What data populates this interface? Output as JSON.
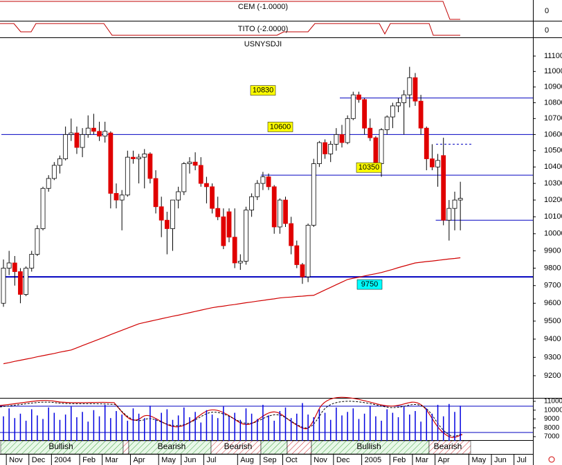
{
  "top_panels": [
    {
      "label": "CEM (-1.0000)",
      "yticks": [
        0
      ]
    },
    {
      "label": "TITO (-2.0000)",
      "yticks": [
        0
      ]
    }
  ],
  "chart_data": {
    "type": "candlestick",
    "title": "USNYSDJI",
    "log_scale": true,
    "up_color": "#ffffff",
    "down_color": "#e00000",
    "outline_color": "#000000",
    "categories": [
      null,
      "Nov",
      null,
      null,
      null,
      "Dec",
      null,
      null,
      null,
      "2004",
      null,
      null,
      null,
      null,
      "Feb",
      null,
      null,
      null,
      "Mar",
      null,
      null,
      null,
      null,
      "Apr",
      null,
      null,
      null,
      null,
      "May",
      null,
      null,
      null,
      "Jun",
      null,
      null,
      null,
      "Jul",
      null,
      null,
      null,
      null,
      null,
      "Aug",
      null,
      null,
      null,
      "Sep",
      null,
      null,
      null,
      "Oct",
      null,
      null,
      null,
      null,
      "Nov",
      null,
      null,
      null,
      "Dec",
      null,
      null,
      null,
      null,
      "2005",
      null,
      null,
      null,
      null,
      "Feb",
      null,
      null,
      null,
      "Mar",
      null,
      null,
      null,
      "Apr",
      null,
      null,
      null,
      null,
      null,
      "May",
      null,
      null,
      null,
      "Jun",
      null,
      null,
      null,
      "Jul",
      null
    ],
    "open": [
      9600,
      9800,
      9830,
      9780,
      9650,
      9800,
      9880,
      10030,
      10270,
      10330,
      10410,
      10450,
      10600,
      10610,
      10520,
      10600,
      10640,
      10620,
      10590,
      10610,
      10240,
      10200,
      10230,
      10460,
      10450,
      10460,
      10480,
      10330,
      10160,
      10080,
      10030,
      10200,
      10250,
      10420,
      10430,
      10410,
      10300,
      10280,
      10150,
      10100,
      10130,
      9980,
      9830,
      9840,
      10140,
      10220,
      10300,
      10340,
      10280,
      10040,
      10200,
      10060,
      9930,
      9820,
      9750,
      10050,
      10420,
      10550,
      10480,
      10540,
      10600,
      10550,
      10700,
      10850,
      10820,
      10640,
      10580,
      10420,
      10630,
      10710,
      10780,
      10800,
      10850,
      10960,
      10810,
      10640,
      10450,
      10400,
      10470,
      10080,
      10150,
      10200,
      null,
      null,
      null,
      null,
      null,
      null,
      null,
      null,
      null,
      null,
      null
    ],
    "high": [
      9850,
      9900,
      9870,
      9800,
      9810,
      9900,
      10050,
      10280,
      10350,
      10430,
      10470,
      10650,
      10700,
      10650,
      10640,
      10720,
      10730,
      10680,
      10680,
      10620,
      10300,
      10260,
      10500,
      10500,
      10480,
      10510,
      10490,
      10380,
      10220,
      10130,
      10200,
      10280,
      10430,
      10460,
      10490,
      10460,
      10340,
      10300,
      10220,
      10150,
      10150,
      10150,
      9880,
      10160,
      10240,
      10320,
      10370,
      10360,
      10290,
      10210,
      10220,
      10100,
      9960,
      9830,
      10060,
      10450,
      10560,
      10570,
      10560,
      10640,
      10660,
      10720,
      10870,
      10870,
      10830,
      10700,
      10590,
      10640,
      10720,
      10800,
      10830,
      10880,
      11030,
      10990,
      10850,
      10650,
      10540,
      10480,
      10580,
      10200,
      10250,
      10310,
      null,
      null,
      null,
      null,
      null,
      null,
      null,
      null,
      null,
      null,
      null
    ],
    "low": [
      9580,
      9760,
      9700,
      9600,
      9640,
      9780,
      9870,
      10020,
      10250,
      10320,
      10360,
      10440,
      10560,
      10480,
      10460,
      10580,
      10600,
      10560,
      10550,
      10150,
      10150,
      10020,
      10220,
      10420,
      10300,
      10270,
      10300,
      10120,
      9980,
      9880,
      9900,
      10150,
      10230,
      10360,
      10380,
      10280,
      10180,
      10120,
      10080,
      9910,
      9950,
      9800,
      9790,
      9820,
      10100,
      10200,
      10260,
      10260,
      10000,
      10000,
      10040,
      9880,
      9800,
      9710,
      9720,
      10040,
      10400,
      10450,
      10430,
      10500,
      10520,
      10540,
      10690,
      10800,
      10600,
      10560,
      10400,
      10340,
      10600,
      10640,
      10740,
      10600,
      10770,
      10780,
      10600,
      10380,
      10380,
      10280,
      10050,
      9960,
      10020,
      10020,
      null,
      null,
      null,
      null,
      null,
      null,
      null,
      null,
      null,
      null,
      null
    ],
    "close": [
      9800,
      9830,
      9780,
      9650,
      9800,
      9880,
      10030,
      10270,
      10330,
      10410,
      10450,
      10600,
      10610,
      10520,
      10600,
      10640,
      10620,
      10590,
      10620,
      10240,
      10200,
      10230,
      10460,
      10450,
      10460,
      10480,
      10330,
      10160,
      10080,
      10030,
      10200,
      10250,
      10420,
      10430,
      10410,
      10300,
      10280,
      10150,
      10100,
      9930,
      9980,
      9830,
      9840,
      10140,
      10220,
      10300,
      10340,
      10280,
      10040,
      10200,
      10060,
      9930,
      9820,
      9750,
      10050,
      10420,
      10550,
      10480,
      10540,
      10600,
      10550,
      10700,
      10850,
      10820,
      10640,
      10580,
      10420,
      10630,
      10710,
      10780,
      10800,
      10850,
      10960,
      10810,
      10640,
      10450,
      10400,
      10440,
      10080,
      10150,
      10200,
      10210,
      null,
      null,
      null,
      null,
      null,
      null,
      null,
      null,
      null,
      null,
      null
    ],
    "moving_average": {
      "color": "#d00000",
      "values": [
        9265,
        9271,
        9278,
        9284,
        9290,
        9296,
        9303,
        9309,
        9315,
        9321,
        9328,
        9334,
        9340,
        9352,
        9364,
        9376,
        9388,
        9400,
        9412,
        9425,
        9437,
        9449,
        9461,
        9473,
        9485,
        9492,
        9499,
        9506,
        9513,
        9520,
        9527,
        9533,
        9540,
        9547,
        9554,
        9561,
        9568,
        9575,
        9580,
        9584,
        9589,
        9593,
        9598,
        9603,
        9607,
        9612,
        9616,
        9621,
        9625,
        9630,
        9633,
        9635,
        9638,
        9640,
        9643,
        9645,
        9660,
        9675,
        9690,
        9705,
        9720,
        9735,
        9742,
        9748,
        9755,
        9762,
        9768,
        9775,
        9784,
        9793,
        9803,
        9812,
        9821,
        9830,
        9834,
        9838,
        9841,
        9845,
        9849,
        9853,
        9856,
        9860,
        null,
        null,
        null,
        null,
        null,
        null,
        null,
        null,
        null,
        null,
        null
      ]
    },
    "levels": [
      10830,
      10600,
      10350,
      10080,
      9750
    ],
    "level_color": "#0000c0",
    "level_box_colors": [
      "#ffff00",
      "#ffff00",
      "#ffff00",
      null,
      "#00ffff"
    ],
    "dashed_level": 10540,
    "ylim": [
      9081,
      11218
    ],
    "yticks": [
      9200,
      9300,
      9400,
      9500,
      9600,
      9700,
      9800,
      9900,
      10000,
      10100,
      10200,
      10300,
      10400,
      10500,
      10600,
      10700,
      10800,
      10900,
      11000,
      11100
    ],
    "volume": {
      "color": "#0000e0",
      "ylim": [
        6530,
        11310
      ],
      "yticks": [
        7000,
        8000,
        9000,
        10000,
        11000
      ],
      "values": [
        9300,
        10200,
        9100,
        9600,
        8800,
        10100,
        9400,
        9000,
        10300,
        9700,
        8900,
        9500,
        10400,
        9200,
        9800,
        8700,
        10000,
        9300,
        10600,
        9100,
        9900,
        9500,
        8800,
        10200,
        9600,
        9100,
        10500,
        9000,
        9700,
        10100,
        8900,
        9400,
        10300,
        9200,
        9800,
        8600,
        10000,
        9500,
        9100,
        10400,
        9300,
        9700,
        8900,
        10200,
        9600,
        9000,
        10600,
        9400,
        8800,
        9900,
        10300,
        9100,
        9600,
        10800,
        9500,
        9200,
        10100,
        9700,
        8900,
        10300,
        9400,
        9800,
        10200,
        9000,
        9600,
        10500,
        9300,
        8800,
        10100,
        9700,
        9200,
        10400,
        9500,
        9900,
        8700,
        10200,
        9600,
        10600,
        9300,
        10700,
        9800,
        10500,
        null,
        null,
        null,
        null,
        null,
        null,
        null,
        null,
        null,
        null,
        null
      ]
    },
    "bands": [
      "Bullish",
      "Bearish",
      "Bearish",
      "Bullish",
      "Bearish"
    ]
  }
}
